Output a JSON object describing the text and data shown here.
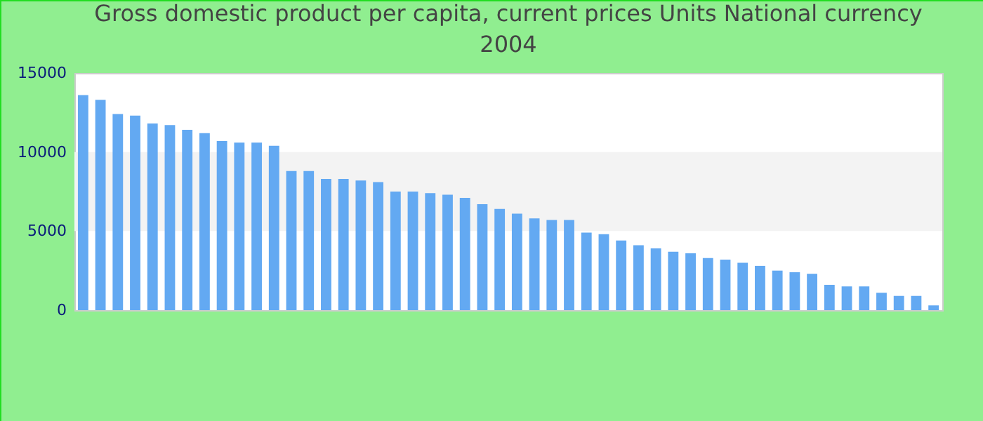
{
  "chart_data": {
    "type": "bar",
    "title": "Gross domestic product per capita, current prices Units National currency",
    "subtitle": "2004",
    "categories": [
      null,
      null,
      null,
      null,
      null,
      null,
      null,
      null,
      null,
      null,
      null,
      null,
      null,
      null,
      null,
      null,
      null,
      null,
      null,
      null,
      null,
      null,
      null,
      null,
      null,
      null,
      null,
      null,
      null,
      null,
      null,
      null,
      null,
      null,
      null,
      null,
      null,
      null,
      null,
      null,
      null,
      null,
      null,
      null,
      null,
      null,
      null,
      null,
      null,
      null
    ],
    "values": [
      13600,
      13300,
      12400,
      12300,
      11800,
      11700,
      11400,
      11200,
      10700,
      10600,
      10600,
      10400,
      8800,
      8800,
      8300,
      8300,
      8200,
      8100,
      7500,
      7500,
      7400,
      7300,
      7100,
      6700,
      6400,
      6100,
      5800,
      5700,
      5700,
      4900,
      4800,
      4400,
      4100,
      3900,
      3700,
      3600,
      3300,
      3200,
      3000,
      2800,
      2500,
      2400,
      2300,
      1600,
      1500,
      1500,
      1100,
      900,
      900,
      300
    ],
    "color": "#63a9f2",
    "ylim": [
      0,
      15000
    ],
    "yticks": [
      0,
      5000,
      10000,
      15000
    ],
    "tick_labels": "y",
    "bands": [
      {
        "axis": "y",
        "from": 5000,
        "to": 10000,
        "color": "#f3f3f3"
      }
    ]
  }
}
